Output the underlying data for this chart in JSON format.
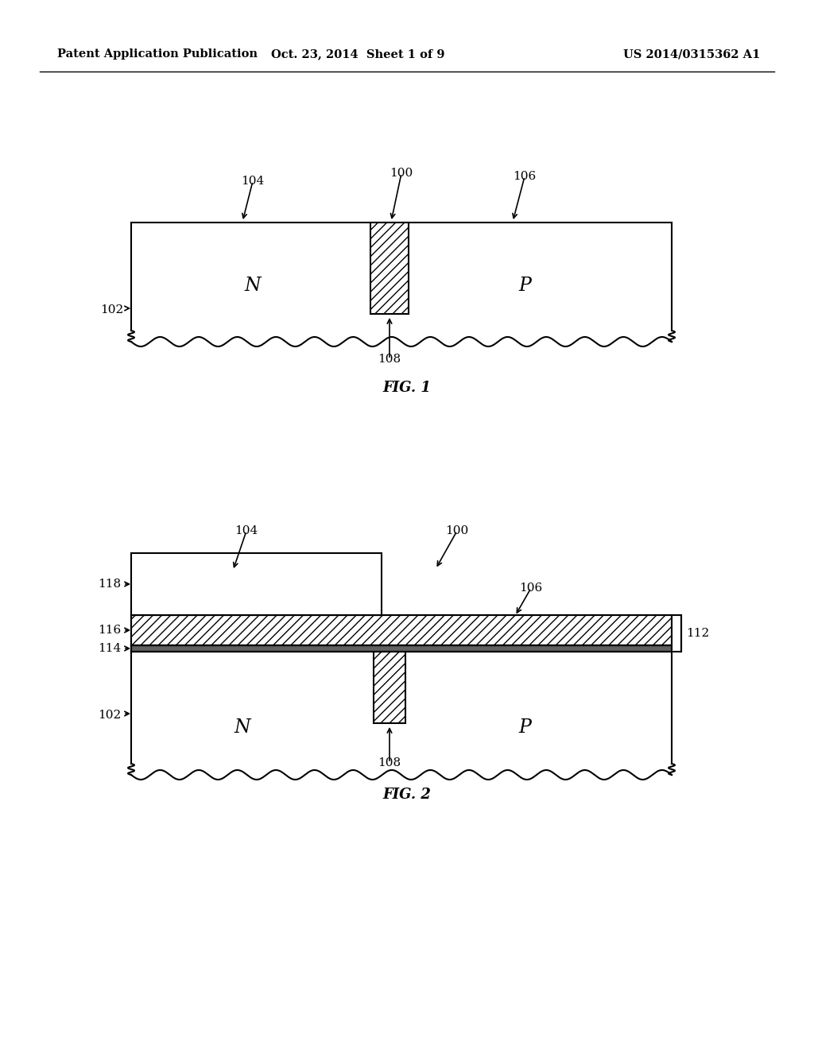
{
  "header_left": "Patent Application Publication",
  "header_center": "Oct. 23, 2014  Sheet 1 of 9",
  "header_right": "US 2014/0315362 A1",
  "fig1_label": "FIG. 1",
  "fig2_label": "FIG. 2",
  "background": "#ffffff",
  "line_color": "#000000"
}
